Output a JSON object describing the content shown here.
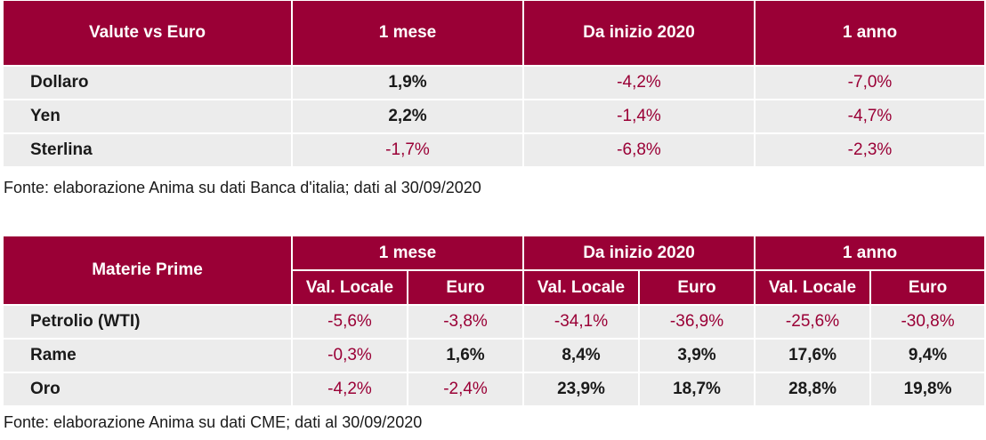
{
  "table1": {
    "headers": [
      "Valute vs Euro",
      "1 mese",
      "Da inizio 2020",
      "1 anno"
    ],
    "rows": [
      {
        "label": "Dollaro",
        "values": [
          "1,9%",
          "-4,2%",
          "-7,0%"
        ]
      },
      {
        "label": "Yen",
        "values": [
          "2,2%",
          "-1,4%",
          "-4,7%"
        ]
      },
      {
        "label": "Sterlina",
        "values": [
          "-1,7%",
          "-6,8%",
          "-2,3%"
        ]
      }
    ],
    "source": "Fonte: elaborazione Anima su dati Banca d'italia; dati al 30/09/2020"
  },
  "table2": {
    "row_header": "Materie Prime",
    "groups": [
      "1 mese",
      "Da inizio 2020",
      "1 anno"
    ],
    "subheaders": [
      "Val. Locale",
      "Euro",
      "Val. Locale",
      "Euro",
      "Val. Locale",
      "Euro"
    ],
    "rows": [
      {
        "label": "Petrolio (WTI)",
        "values": [
          "-5,6%",
          "-3,8%",
          "-34,1%",
          "-36,9%",
          "-25,6%",
          "-30,8%"
        ]
      },
      {
        "label": "Rame",
        "values": [
          "-0,3%",
          "1,6%",
          "8,4%",
          "3,9%",
          "17,6%",
          "9,4%"
        ]
      },
      {
        "label": "Oro",
        "values": [
          "-4,2%",
          "-2,4%",
          "23,9%",
          "18,7%",
          "28,8%",
          "19,8%"
        ]
      }
    ],
    "source": "Fonte: elaborazione Anima su dati CME; dati al 30/09/2020"
  },
  "colors": {
    "header_bg": "#9a0036",
    "negative_text": "#9a0036",
    "row_bg": "#ececec"
  }
}
